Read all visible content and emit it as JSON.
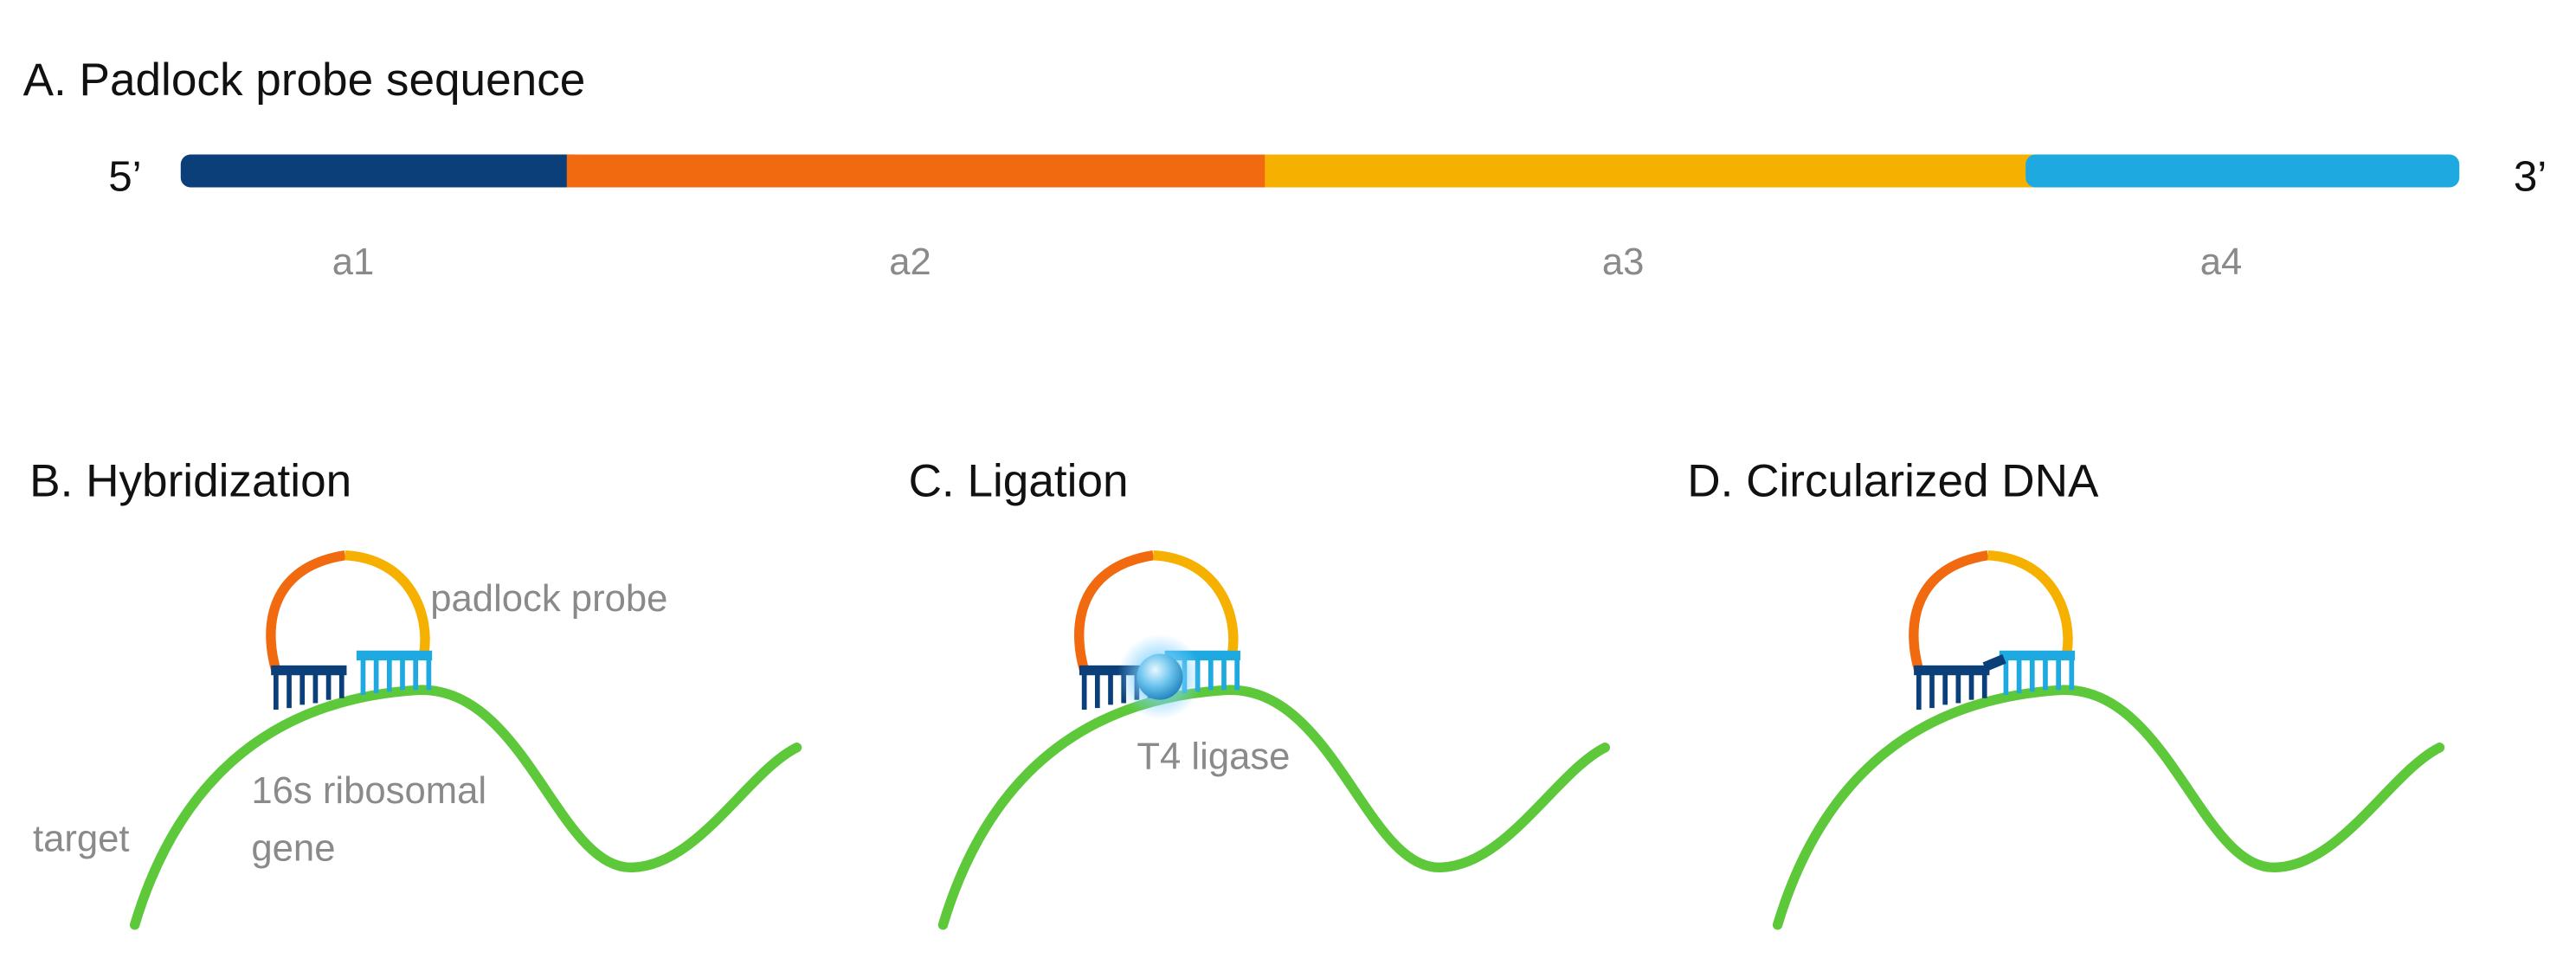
{
  "panel_a": {
    "title": "A. Padlock probe sequence",
    "end_5": "5’",
    "end_3": "3’",
    "segments": [
      "a1",
      "a2",
      "a3",
      "a4"
    ]
  },
  "hybridization": {
    "title": "B. Hybridization",
    "probe_label": "padlock probe",
    "target_label": "target",
    "gene_label": [
      "16s ribosomal",
      "gene"
    ]
  },
  "ligation": {
    "title": "C. Ligation",
    "enzyme_label": "T4 ligase"
  },
  "circularized": {
    "title": "D. Circularized DNA"
  }
}
